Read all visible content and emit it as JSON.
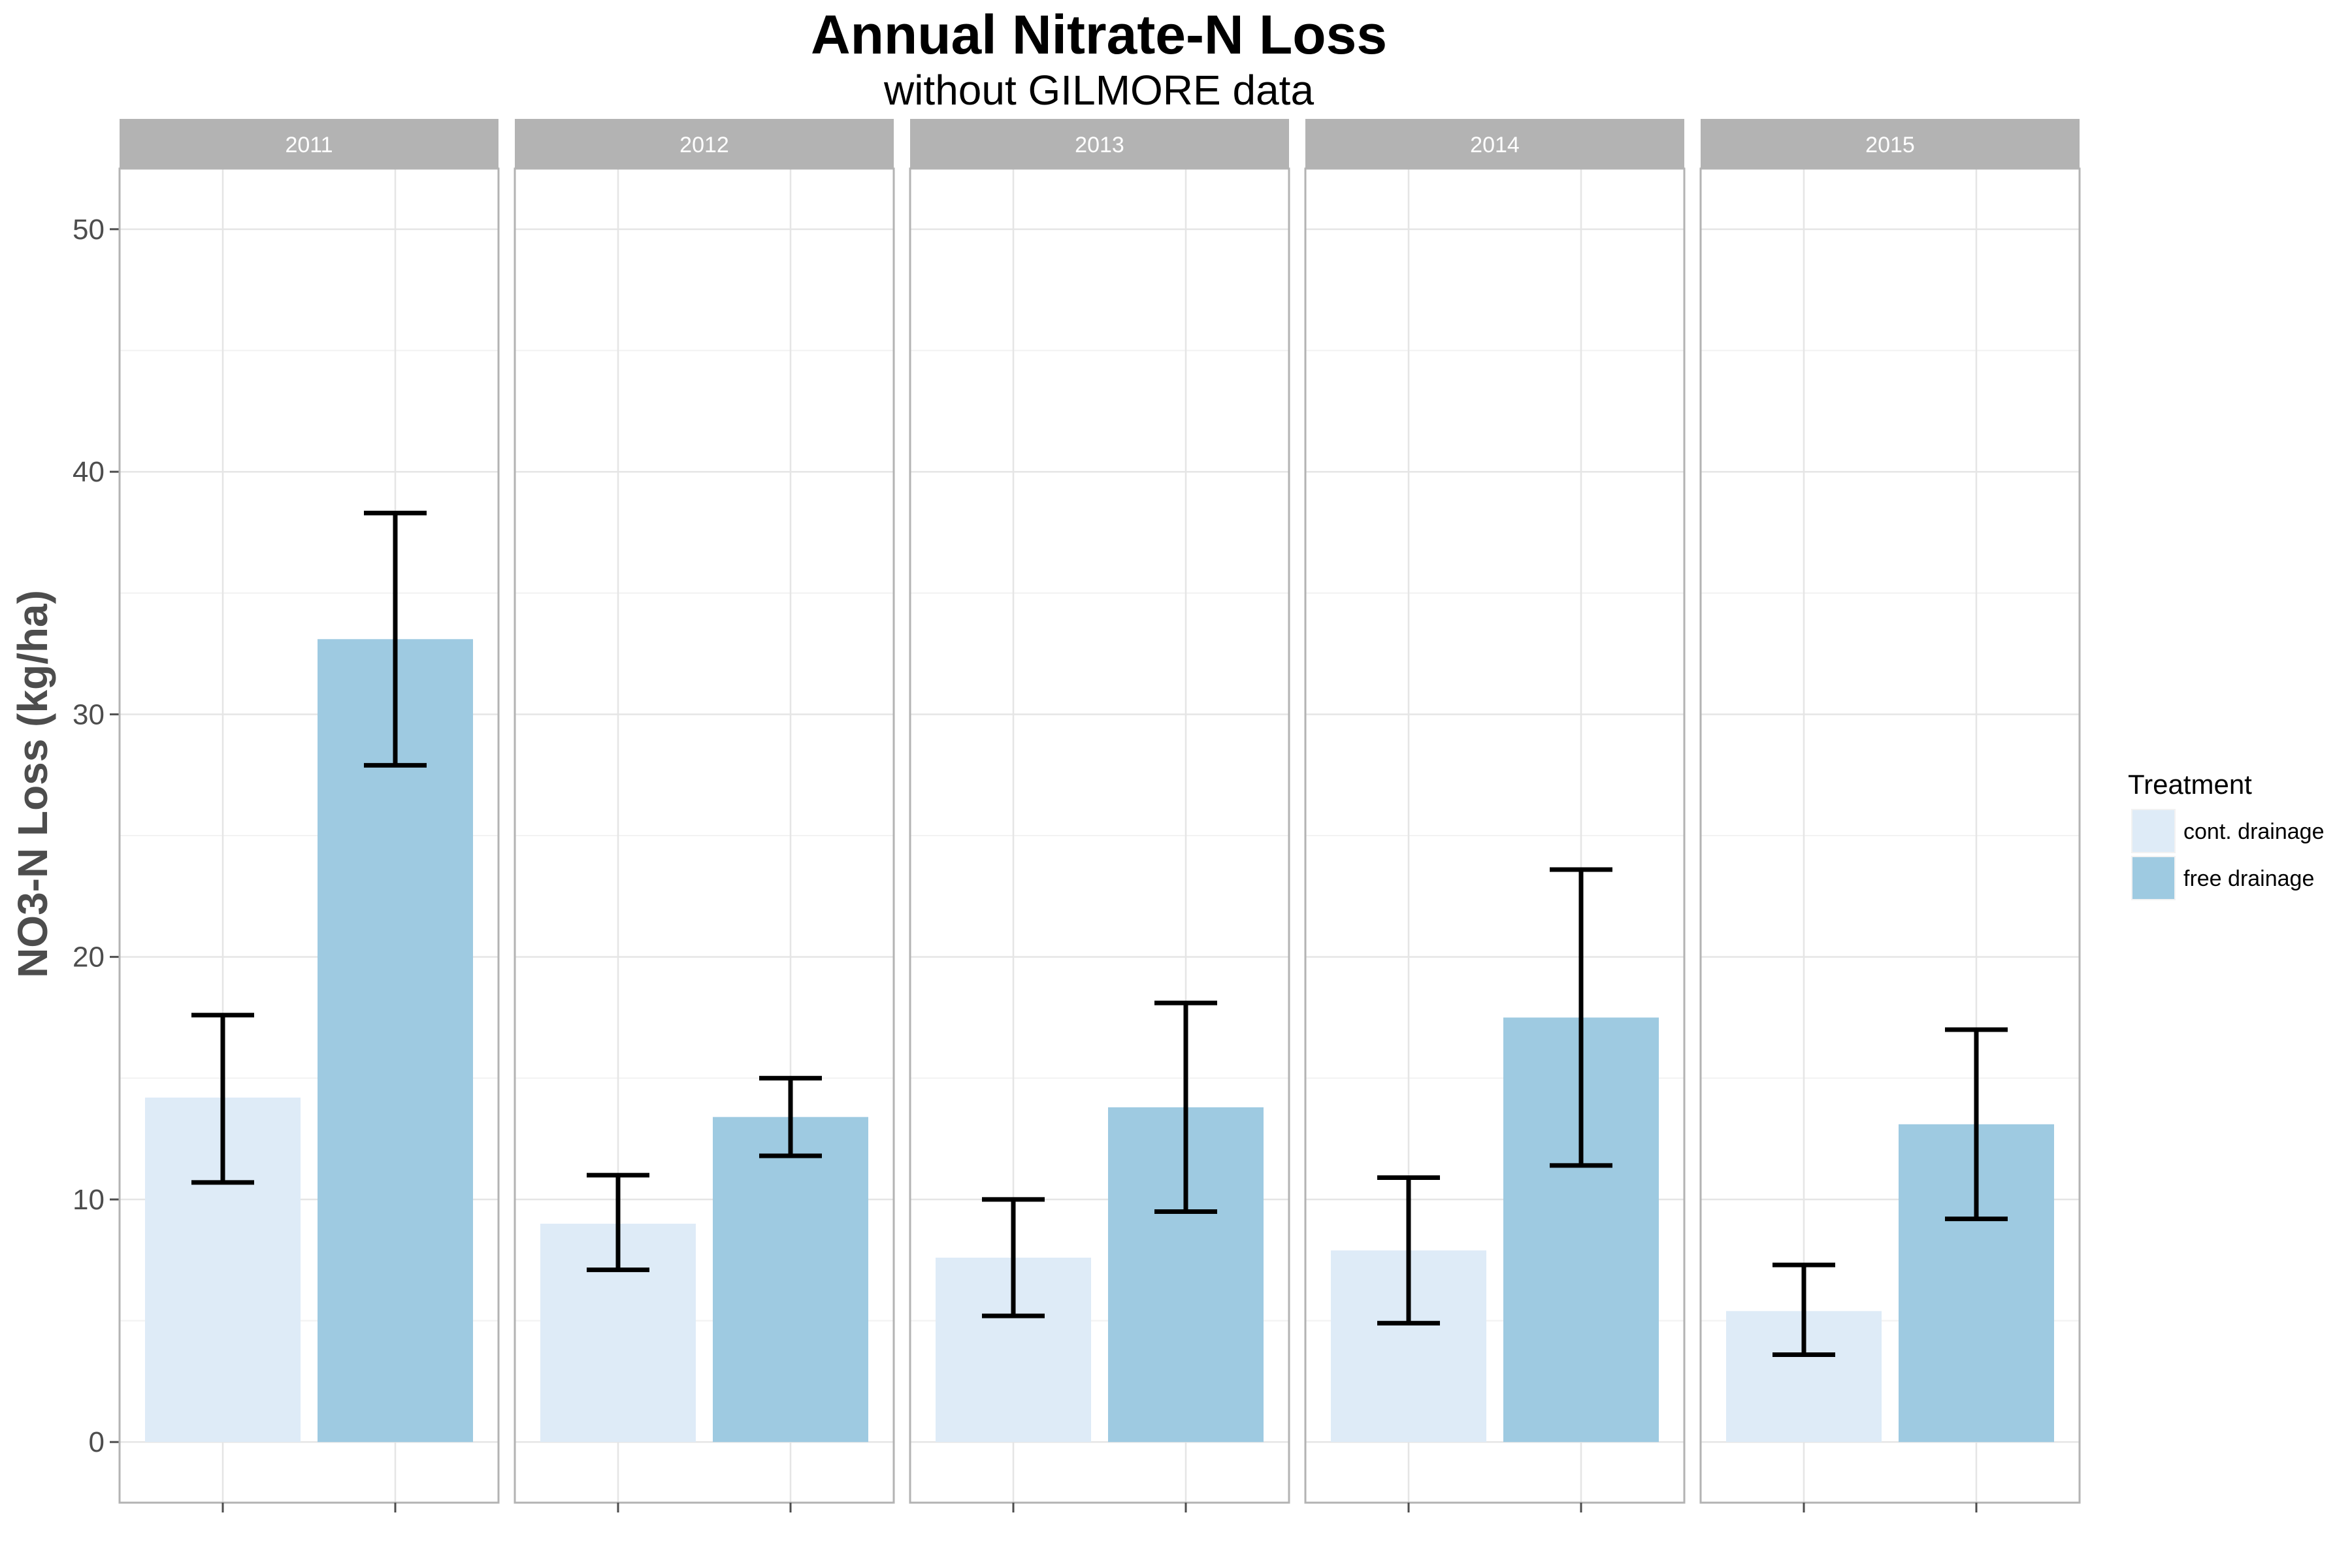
{
  "chart_data": {
    "type": "bar",
    "title": "Annual Nitrate-N Loss",
    "subtitle": "without GILMORE data",
    "ylabel": "NO3-N Loss (kg/ha)",
    "xlabel": "",
    "ylim": [
      -2.5,
      52.5
    ],
    "yticks": [
      0,
      10,
      20,
      30,
      40,
      50
    ],
    "facets": [
      "2011",
      "2012",
      "2013",
      "2014",
      "2015"
    ],
    "legend": {
      "title": "Treatment",
      "position": "right",
      "entries": [
        "cont. drainage",
        "free drainage"
      ]
    },
    "colors": {
      "cont. drainage": "#deebf7",
      "free drainage": "#9ecae1",
      "error_bar": "#000000",
      "strip": "#b3b3b3",
      "grid": "#e5e5e5"
    },
    "grid": true,
    "series": [
      {
        "name": "cont. drainage",
        "values": [
          14.2,
          9.0,
          7.6,
          7.9,
          5.4
        ],
        "error_low": [
          10.7,
          7.1,
          5.2,
          4.9,
          3.6
        ],
        "error_high": [
          17.6,
          11.0,
          10.0,
          10.9,
          7.3
        ]
      },
      {
        "name": "free drainage",
        "values": [
          33.1,
          13.4,
          13.8,
          17.5,
          13.1
        ],
        "error_low": [
          27.9,
          11.8,
          9.5,
          11.4,
          9.2
        ],
        "error_high": [
          38.3,
          15.0,
          18.1,
          23.6,
          17.0
        ]
      }
    ]
  }
}
